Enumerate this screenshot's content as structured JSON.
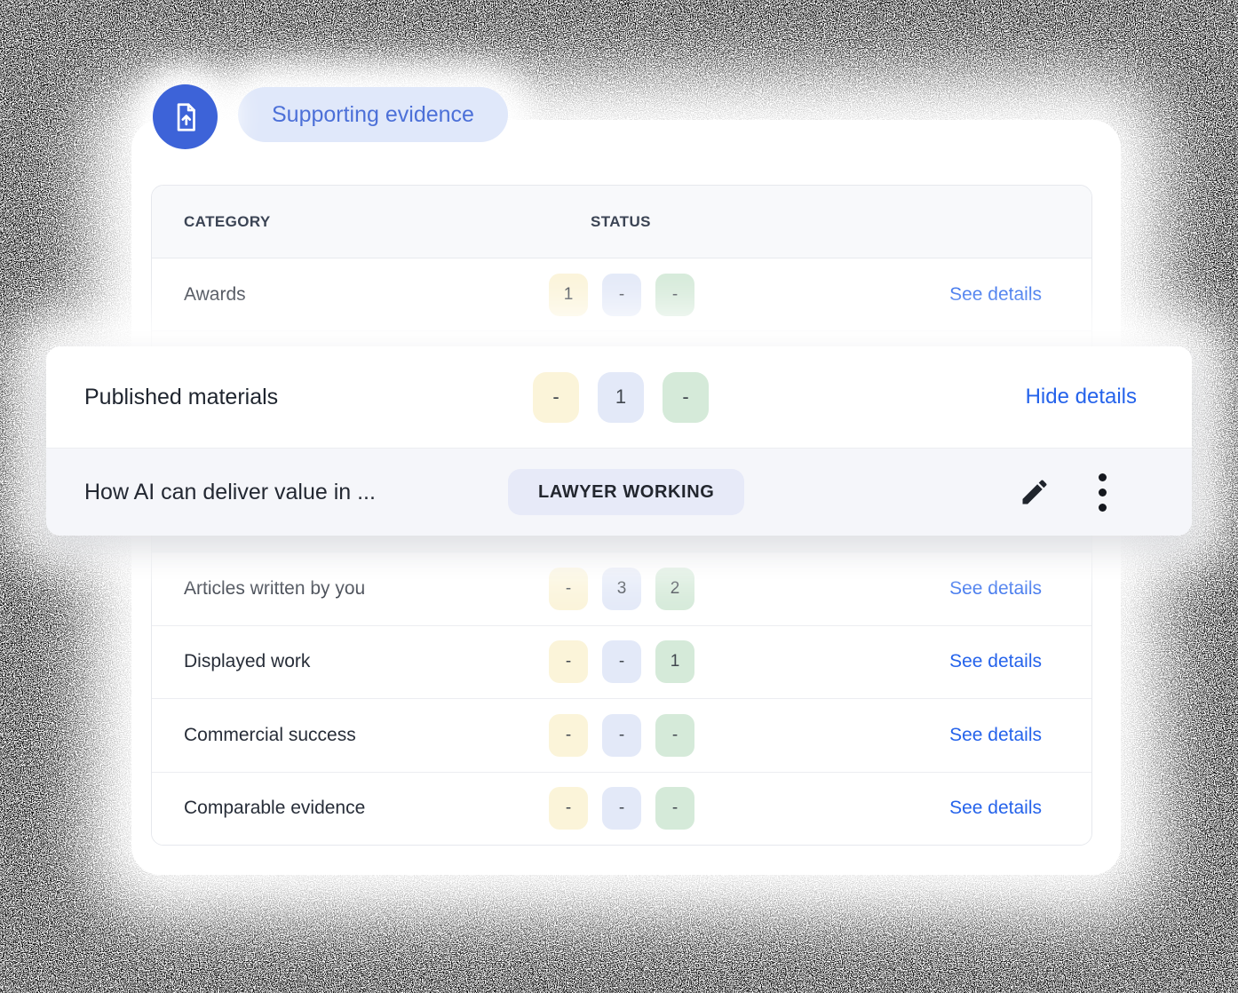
{
  "header": {
    "pill_label": "Supporting evidence",
    "icon": "upload-document-icon"
  },
  "table": {
    "columns": [
      "CATEGORY",
      "STATUS"
    ],
    "badge_order": [
      "yellow",
      "blue",
      "green"
    ],
    "rows": [
      {
        "category": "Awards",
        "badges": [
          "1",
          "-",
          "-"
        ],
        "action": "See details"
      },
      {
        "category": "Articles written by you",
        "badges": [
          "-",
          "3",
          "2"
        ],
        "action": "See details"
      },
      {
        "category": "Displayed work",
        "badges": [
          "-",
          "-",
          "1"
        ],
        "action": "See details"
      },
      {
        "category": "Commercial success",
        "badges": [
          "-",
          "-",
          "-"
        ],
        "action": "See details"
      },
      {
        "category": "Comparable evidence",
        "badges": [
          "-",
          "-",
          "-"
        ],
        "action": "See details"
      }
    ]
  },
  "overlay": {
    "category": "Published materials",
    "badges": [
      "-",
      "1",
      "-"
    ],
    "action": "Hide details",
    "item": {
      "title": "How AI can deliver value in ...",
      "status": "LAWYER WORKING",
      "icons": [
        "pencil-icon",
        "kebab-menu-icon"
      ]
    }
  },
  "colors": {
    "badge_yellow": "#FBF4D9",
    "badge_blue": "#E3E9F8",
    "badge_green": "#D5EAD9",
    "link_blue": "#2563EB",
    "circle_blue": "#3D63D8",
    "pill_bg": "#E0E8FA",
    "pill_text": "#4C70D8",
    "status_chip_bg": "#E7EAF8"
  }
}
